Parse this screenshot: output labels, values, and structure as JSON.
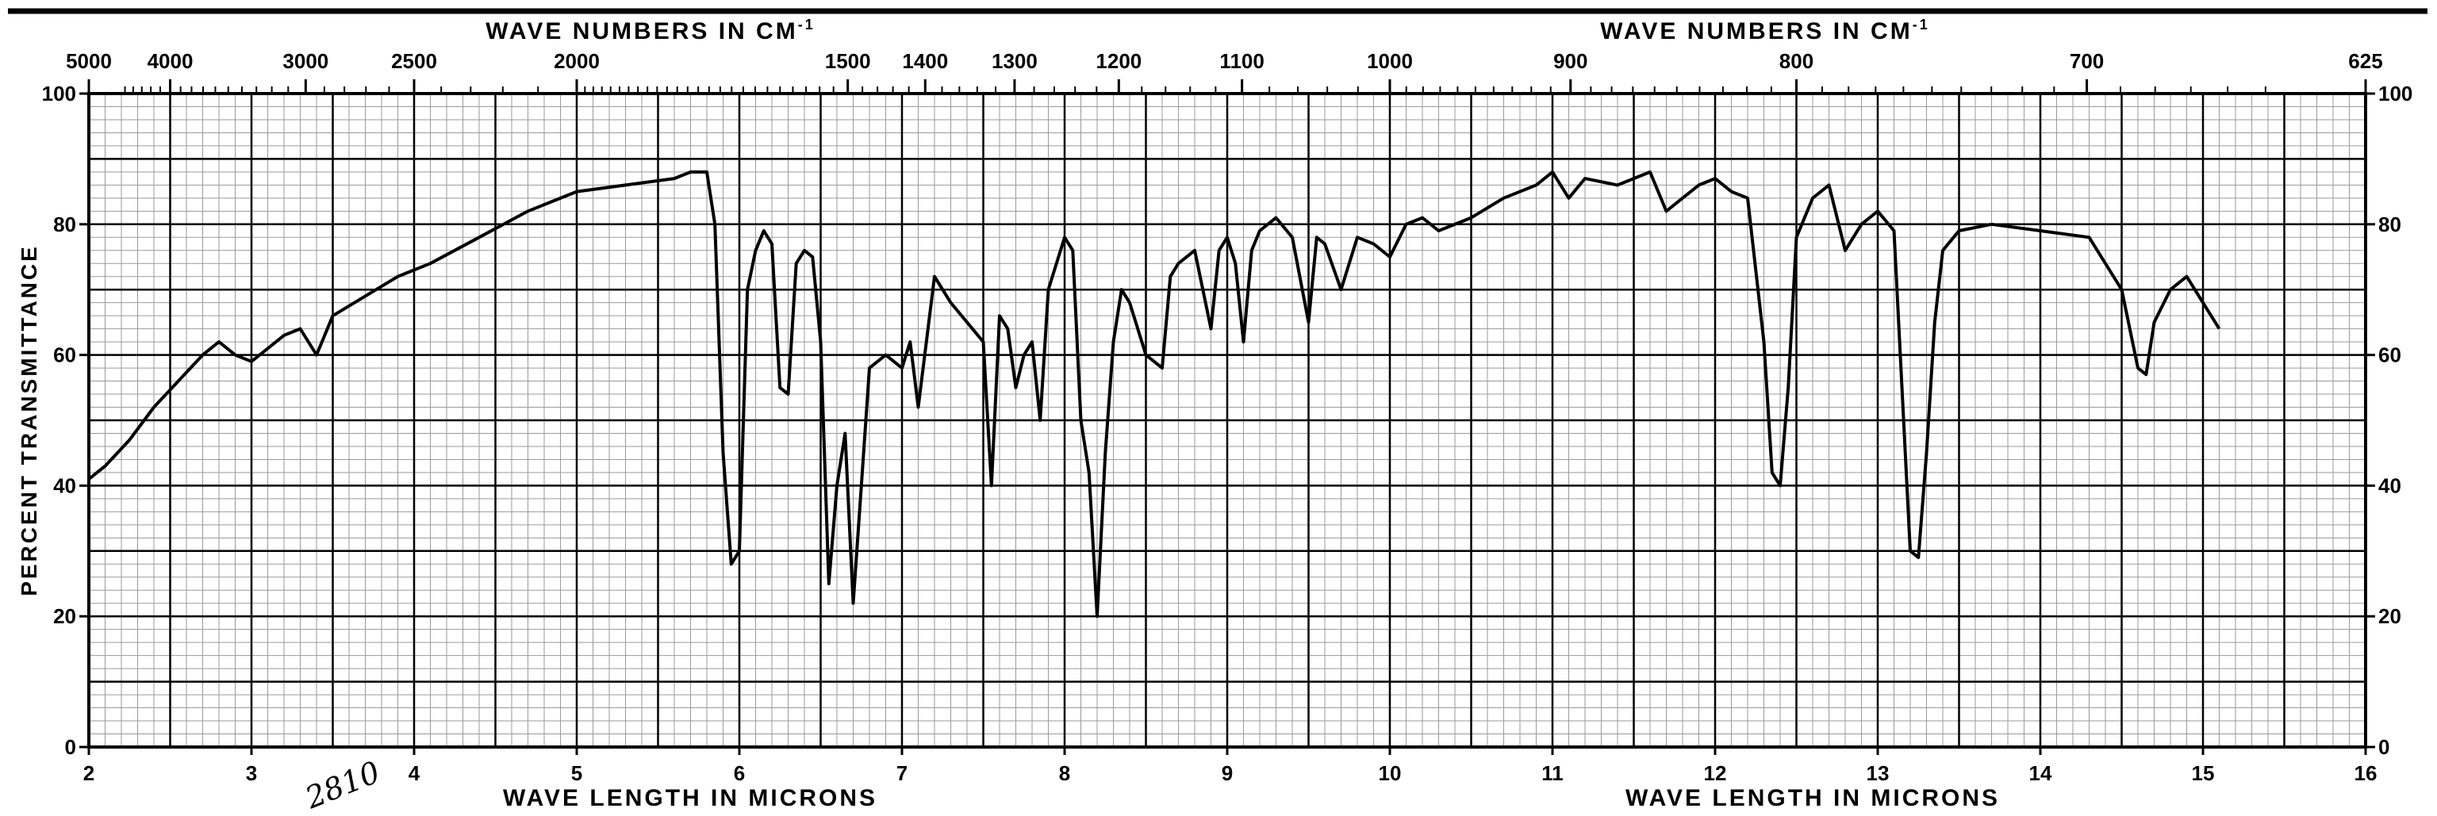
{
  "chart_data": {
    "type": "line",
    "title": "",
    "top_axis_title_left": "WAVE NUMBERS IN CM",
    "top_axis_title_right": "WAVE NUMBERS IN CM",
    "top_axis_title_superscript": "-1",
    "bottom_axis_title_left": "WAVE LENGTH IN MICRONS",
    "bottom_axis_title_right": "WAVE LENGTH IN MICRONS",
    "ylabel": "PERCENT TRANSMITTANCE",
    "xlim": [
      2,
      16
    ],
    "ylim": [
      0,
      100
    ],
    "x_ticks": [
      "2",
      "3",
      "4",
      "5",
      "6",
      "7",
      "8",
      "9",
      "10",
      "11",
      "12",
      "13",
      "14",
      "15",
      "16"
    ],
    "y_ticks_left": [
      "0",
      "20",
      "40",
      "60",
      "80",
      "100"
    ],
    "y_ticks_right": [
      "0",
      "20",
      "40",
      "60",
      "80",
      "100"
    ],
    "wavenumber_ticks": [
      "5000",
      "4000",
      "3000",
      "2500",
      "2000",
      "1500",
      "1400",
      "1300",
      "1200",
      "1100",
      "1000",
      "900",
      "800",
      "700",
      "625"
    ],
    "grid": true,
    "handwritten_annotation": "2810",
    "series": [
      {
        "x": [
          2.0,
          2.1,
          2.25,
          2.4,
          2.55,
          2.7,
          2.8,
          2.9,
          3.0,
          3.1,
          3.2,
          3.3,
          3.4,
          3.5,
          3.7,
          3.9,
          4.1,
          4.4,
          4.7,
          5.0,
          5.3,
          5.6,
          5.7,
          5.8,
          5.85,
          5.9,
          5.95,
          6.0,
          6.05,
          6.1,
          6.15,
          6.2,
          6.25,
          6.3,
          6.35,
          6.4,
          6.45,
          6.5,
          6.55,
          6.6,
          6.65,
          6.7,
          6.75,
          6.8,
          6.9,
          7.0,
          7.05,
          7.1,
          7.2,
          7.3,
          7.4,
          7.5,
          7.55,
          7.6,
          7.65,
          7.7,
          7.75,
          7.8,
          7.85,
          7.9,
          8.0,
          8.05,
          8.1,
          8.15,
          8.2,
          8.25,
          8.3,
          8.35,
          8.4,
          8.5,
          8.6,
          8.65,
          8.7,
          8.8,
          8.9,
          8.95,
          9.0,
          9.05,
          9.1,
          9.15,
          9.2,
          9.3,
          9.4,
          9.5,
          9.55,
          9.6,
          9.7,
          9.8,
          9.9,
          10.0,
          10.1,
          10.2,
          10.3,
          10.5,
          10.7,
          10.9,
          11.0,
          11.1,
          11.2,
          11.4,
          11.6,
          11.7,
          11.8,
          11.9,
          12.0,
          12.1,
          12.2,
          12.3,
          12.35,
          12.4,
          12.45,
          12.5,
          12.6,
          12.7,
          12.8,
          12.9,
          13.0,
          13.1,
          13.2,
          13.25,
          13.3,
          13.35,
          13.4,
          13.5,
          13.7,
          14.0,
          14.3,
          14.5,
          14.6,
          14.65,
          14.7,
          14.8,
          14.9,
          15.0,
          15.1
        ],
        "y": [
          41,
          43,
          47,
          52,
          56,
          60,
          62,
          60,
          59,
          61,
          63,
          64,
          60,
          66,
          69,
          72,
          74,
          78,
          82,
          85,
          86,
          87,
          88,
          88,
          80,
          45,
          28,
          30,
          70,
          76,
          79,
          77,
          55,
          54,
          74,
          76,
          75,
          62,
          25,
          40,
          48,
          22,
          40,
          58,
          60,
          58,
          62,
          52,
          72,
          68,
          65,
          62,
          40,
          66,
          64,
          55,
          60,
          62,
          50,
          70,
          78,
          76,
          50,
          42,
          20,
          45,
          62,
          70,
          68,
          60,
          58,
          72,
          74,
          76,
          64,
          76,
          78,
          74,
          62,
          76,
          79,
          81,
          78,
          65,
          78,
          77,
          70,
          78,
          77,
          75,
          80,
          81,
          79,
          81,
          84,
          86,
          88,
          84,
          87,
          86,
          88,
          82,
          84,
          86,
          87,
          85,
          84,
          62,
          42,
          40,
          55,
          78,
          84,
          86,
          76,
          80,
          82,
          79,
          30,
          29,
          45,
          65,
          76,
          79,
          80,
          79,
          78,
          70,
          58,
          57,
          65,
          70,
          72,
          68,
          64
        ]
      }
    ]
  }
}
